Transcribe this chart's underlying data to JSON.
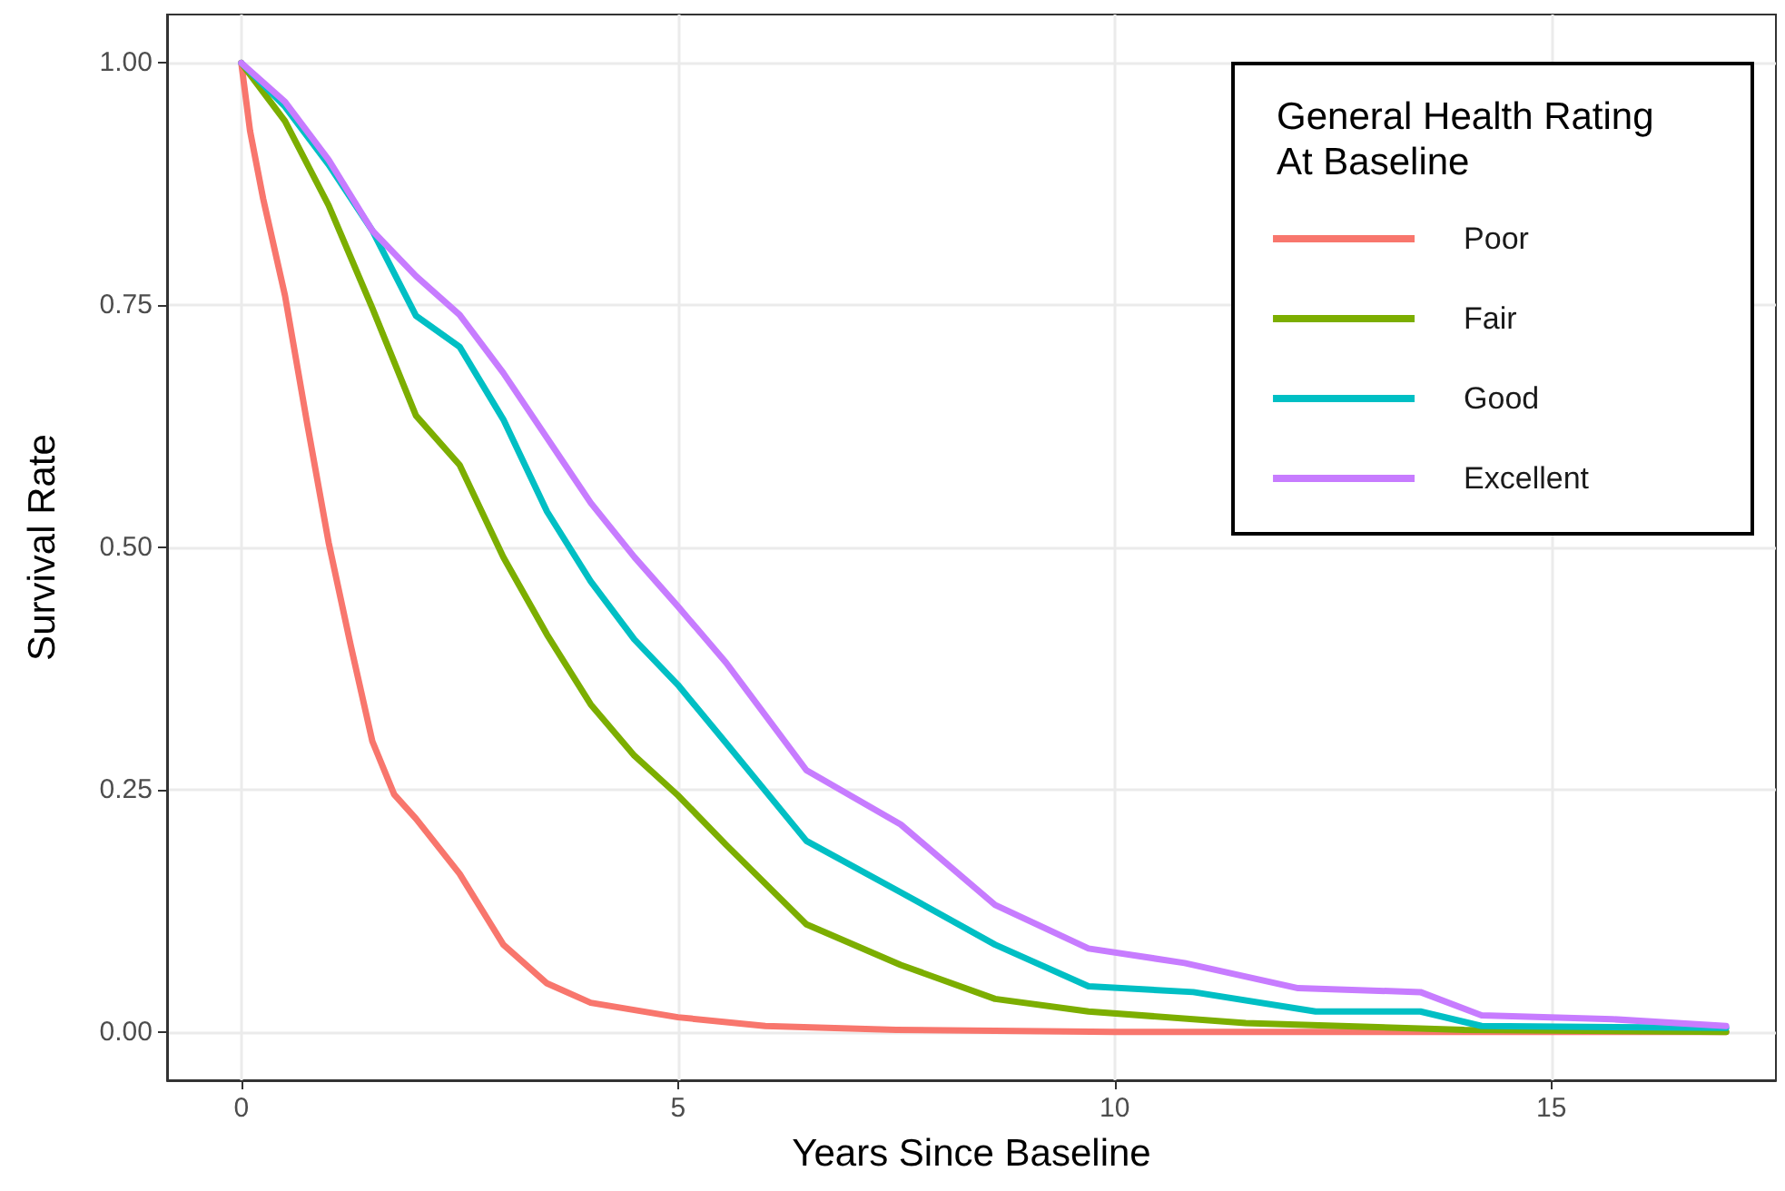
{
  "chart_data": {
    "type": "line",
    "xlabel": "Years Since Baseline",
    "ylabel": "Survival Rate",
    "legend_title": "General Health Rating At Baseline",
    "xlim": [
      -0.85,
      17.57
    ],
    "ylim": [
      -0.05,
      1.05
    ],
    "xticks": [
      0,
      5,
      10,
      15
    ],
    "yticks": [
      {
        "value": 0,
        "label": "0.00"
      },
      {
        "value": 0.25,
        "label": "0.25"
      },
      {
        "value": 0.5,
        "label": "0.50"
      },
      {
        "value": 0.75,
        "label": "0.75"
      },
      {
        "value": 1,
        "label": "1.00"
      }
    ],
    "grid": true,
    "legend": "top right",
    "marker": "none",
    "line_style": "solid",
    "series": [
      {
        "name": "Poor",
        "color": "#f8766d",
        "x": [
          0,
          0.1,
          0.25,
          0.5,
          0.75,
          1,
          1.25,
          1.5,
          1.75,
          2,
          2.5,
          3,
          3.5,
          4,
          5,
          6,
          7.5,
          10,
          17
        ],
        "values": [
          1,
          0.93,
          0.86,
          0.76,
          0.63,
          0.505,
          0.4,
          0.3,
          0.245,
          0.22,
          0.163,
          0.09,
          0.05,
          0.03,
          0.015,
          0.006,
          0.002,
          0,
          0
        ]
      },
      {
        "name": "Fair",
        "color": "#7cae00",
        "x": [
          0,
          0.5,
          1,
          1.5,
          2,
          2.5,
          3,
          3.5,
          4,
          4.5,
          5,
          5.55,
          6.47,
          7.55,
          8.63,
          9.7,
          11.5,
          14,
          17
        ],
        "values": [
          1,
          0.94,
          0.853,
          0.747,
          0.636,
          0.585,
          0.49,
          0.41,
          0.338,
          0.285,
          0.244,
          0.193,
          0.111,
          0.069,
          0.034,
          0.021,
          0.009,
          0.002,
          0
        ]
      },
      {
        "name": "Good",
        "color": "#00bfc4",
        "x": [
          0,
          0.5,
          1,
          1.5,
          2,
          2.5,
          3,
          3.5,
          4,
          4.5,
          5,
          5.55,
          6.47,
          7.55,
          8.63,
          9.7,
          10.9,
          12.3,
          13.5,
          14.2,
          17
        ],
        "values": [
          1,
          0.955,
          0.895,
          0.827,
          0.739,
          0.707,
          0.632,
          0.537,
          0.465,
          0.405,
          0.358,
          0.298,
          0.197,
          0.144,
          0.09,
          0.047,
          0.041,
          0.021,
          0.021,
          0.006,
          0.004
        ]
      },
      {
        "name": "Excellent",
        "color": "#c77cff",
        "x": [
          0,
          0.5,
          1,
          1.5,
          2,
          2.5,
          3,
          3.5,
          4,
          4.5,
          5,
          5.55,
          6.47,
          7.55,
          8.63,
          9.7,
          10.8,
          12.1,
          13.5,
          14.2,
          15.7,
          17
        ],
        "values": [
          1,
          0.96,
          0.9,
          0.827,
          0.78,
          0.74,
          0.68,
          0.613,
          0.546,
          0.49,
          0.439,
          0.381,
          0.27,
          0.214,
          0.131,
          0.086,
          0.071,
          0.045,
          0.041,
          0.017,
          0.013,
          0.006
        ]
      }
    ]
  }
}
